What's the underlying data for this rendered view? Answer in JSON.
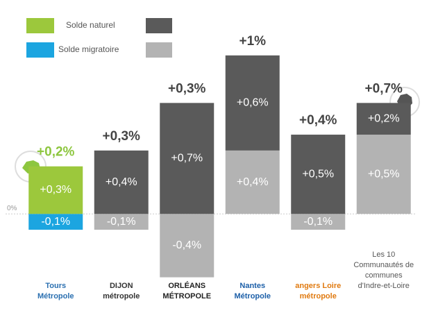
{
  "chart_data": {
    "type": "bar",
    "categories": [
      "Tours Métropole",
      "DIJON métropole",
      "ORLÉANS MÉTROPOLE",
      "Nantes Métropole",
      "angers Loire métropole",
      "Les 10 Communautés de communes d'Indre-et-Loire"
    ],
    "series": [
      {
        "name": "Solde naturel",
        "colors": [
          "#9cc83c",
          "#5a5a5a",
          "#5a5a5a",
          "#5a5a5a",
          "#5a5a5a",
          "#5a5a5a"
        ],
        "values": [
          0.3,
          0.4,
          0.7,
          0.6,
          0.5,
          0.2
        ],
        "value_labels": [
          "+0,3%",
          "+0,4%",
          "+0,7%",
          "+0,6%",
          "+0,5%",
          "+0,2%"
        ]
      },
      {
        "name": "Solde migratoire",
        "colors": [
          "#1ca5e0",
          "#b3b3b3",
          "#b3b3b3",
          "#b3b3b3",
          "#b3b3b3",
          "#b3b3b3"
        ],
        "values": [
          -0.1,
          -0.1,
          -0.4,
          0.4,
          -0.1,
          0.5
        ],
        "value_labels": [
          "-0,1%",
          "-0,1%",
          "-0,4%",
          "+0,4%",
          "-0,1%",
          "+0,5%"
        ]
      }
    ],
    "totals": {
      "values": [
        0.2,
        0.3,
        0.3,
        1,
        0.4,
        0.7
      ],
      "value_labels": [
        "+0,2%",
        "+0,3%",
        "+0,3%",
        "+1%",
        "+0,4%",
        "+0,7%"
      ],
      "colors": [
        "#8dc63f",
        "#444444",
        "#444444",
        "#444444",
        "#444444",
        "#444444"
      ]
    },
    "ylim": [
      -0.45,
      1.1
    ],
    "yticks": [
      {
        "value": 0,
        "label": "0%"
      }
    ],
    "legend": "top-left"
  }
}
